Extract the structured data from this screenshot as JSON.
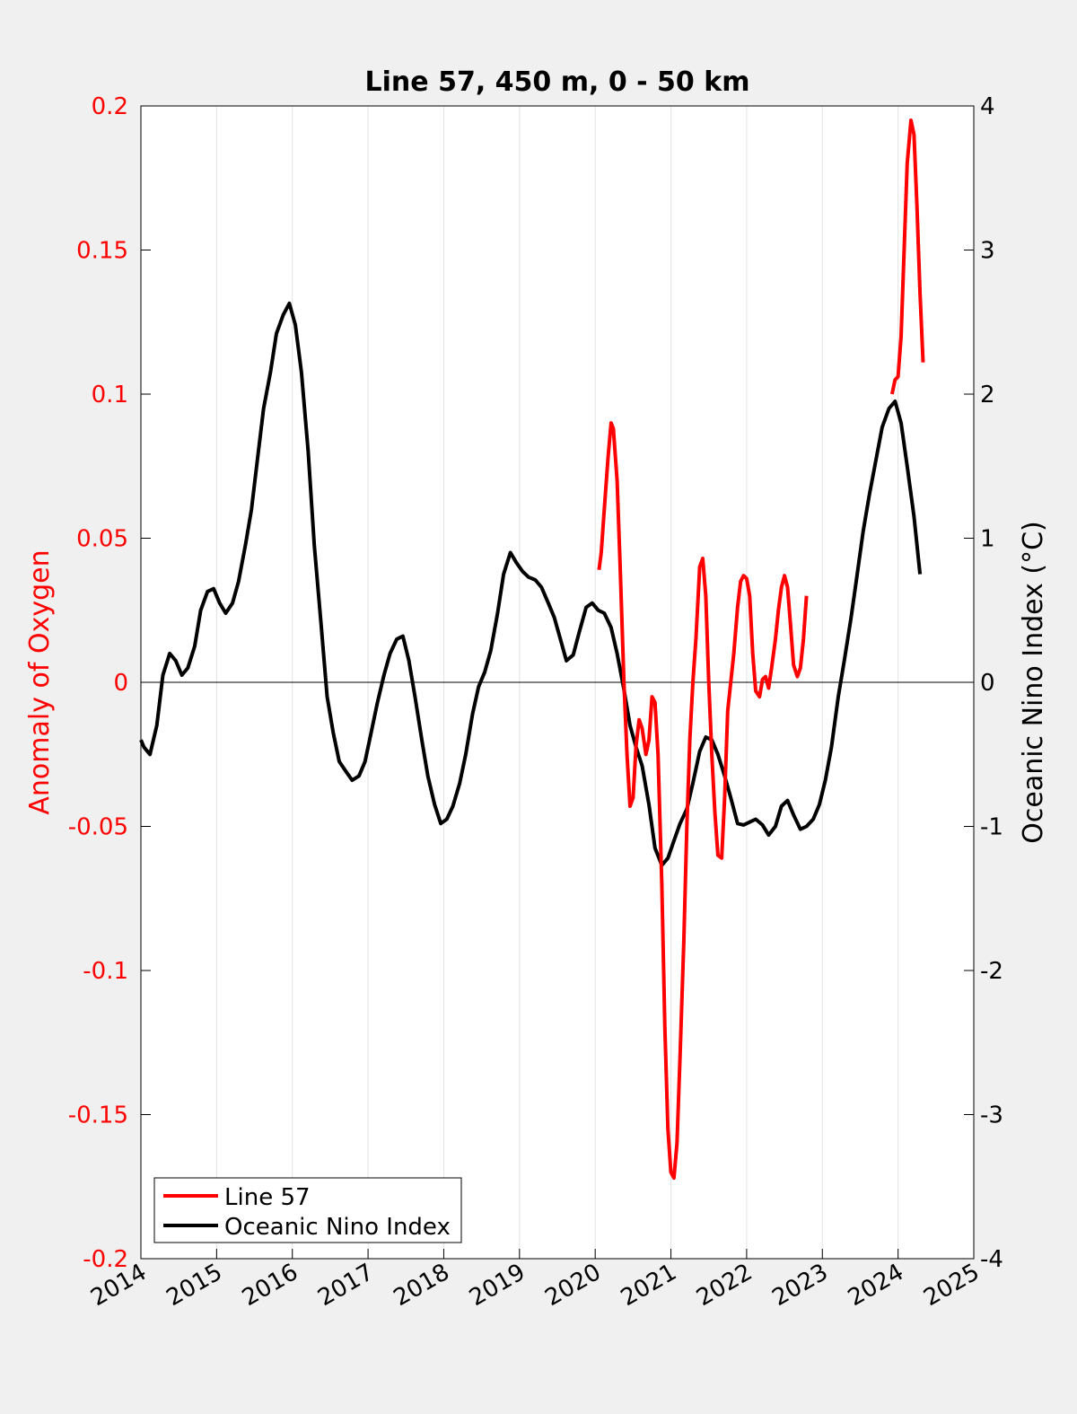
{
  "figure": {
    "background": "#f0f0f0",
    "axes_background": "#ffffff"
  },
  "chart_data": {
    "type": "line",
    "title": "Line 57, 450 m, 0 - 50 km",
    "xlabel": "",
    "ylabel_left": "Anomaly of Oxygen",
    "ylabel_right": "Oceanic Nino Index (°C)",
    "xlim": [
      2014,
      2025
    ],
    "ylim_left": [
      -0.2,
      0.2
    ],
    "ylim_right": [
      -4,
      4
    ],
    "x_ticks": [
      2014,
      2015,
      2016,
      2017,
      2018,
      2019,
      2020,
      2021,
      2022,
      2023,
      2024,
      2025
    ],
    "x_tick_labels": [
      "2014",
      "2015",
      "2016",
      "2017",
      "2018",
      "2019",
      "2020",
      "2021",
      "2022",
      "2023",
      "2024",
      "2025"
    ],
    "y_ticks_left": [
      -0.2,
      -0.15,
      -0.1,
      -0.05,
      0,
      0.05,
      0.1,
      0.15,
      0.2
    ],
    "y_tick_labels_left": [
      "-0.2",
      "-0.15",
      "-0.1",
      "-0.05",
      "0",
      "0.05",
      "0.1",
      "0.15",
      "0.2"
    ],
    "y_ticks_right": [
      -4,
      -3,
      -2,
      -1,
      0,
      1,
      2,
      3,
      4
    ],
    "y_tick_labels_right": [
      "-4",
      "-3",
      "-2",
      "-1",
      "0",
      "1",
      "2",
      "3",
      "4"
    ],
    "x_grid": true,
    "y_grid": false,
    "zero_line": true,
    "legend_position": "bottom-left",
    "left_axis_color": "#ff0000",
    "right_axis_color": "#000000",
    "series": [
      {
        "name": "Line 57",
        "axis": "left",
        "color": "#ff0000",
        "points": [
          [
            2020.05,
            0.039
          ],
          [
            2020.08,
            0.045
          ],
          [
            2020.12,
            0.06
          ],
          [
            2020.17,
            0.078
          ],
          [
            2020.21,
            0.09
          ],
          [
            2020.24,
            0.088
          ],
          [
            2020.29,
            0.07
          ],
          [
            2020.33,
            0.04
          ],
          [
            2020.38,
            0.0
          ],
          [
            2020.42,
            -0.025
          ],
          [
            2020.46,
            -0.043
          ],
          [
            2020.5,
            -0.04
          ],
          [
            2020.54,
            -0.022
          ],
          [
            2020.58,
            -0.013
          ],
          [
            2020.62,
            -0.016
          ],
          [
            2020.67,
            -0.025
          ],
          [
            2020.71,
            -0.02
          ],
          [
            2020.75,
            -0.005
          ],
          [
            2020.79,
            -0.007
          ],
          [
            2020.83,
            -0.025
          ],
          [
            2020.88,
            -0.07
          ],
          [
            2020.92,
            -0.12
          ],
          [
            2020.96,
            -0.155
          ],
          [
            2021.0,
            -0.17
          ],
          [
            2021.04,
            -0.172
          ],
          [
            2021.08,
            -0.16
          ],
          [
            2021.12,
            -0.13
          ],
          [
            2021.17,
            -0.09
          ],
          [
            2021.21,
            -0.05
          ],
          [
            2021.25,
            -0.02
          ],
          [
            2021.29,
            0.0
          ],
          [
            2021.33,
            0.015
          ],
          [
            2021.38,
            0.04
          ],
          [
            2021.42,
            0.043
          ],
          [
            2021.46,
            0.03
          ],
          [
            2021.5,
            0.0
          ],
          [
            2021.54,
            -0.025
          ],
          [
            2021.58,
            -0.045
          ],
          [
            2021.62,
            -0.06
          ],
          [
            2021.67,
            -0.061
          ],
          [
            2021.71,
            -0.04
          ],
          [
            2021.75,
            -0.01
          ],
          [
            2021.79,
            0.0
          ],
          [
            2021.83,
            0.01
          ],
          [
            2021.88,
            0.026
          ],
          [
            2021.92,
            0.035
          ],
          [
            2021.96,
            0.037
          ],
          [
            2022.0,
            0.036
          ],
          [
            2022.04,
            0.03
          ],
          [
            2022.08,
            0.01
          ],
          [
            2022.12,
            -0.003
          ],
          [
            2022.17,
            -0.005
          ],
          [
            2022.21,
            0.001
          ],
          [
            2022.25,
            0.002
          ],
          [
            2022.29,
            -0.002
          ],
          [
            2022.33,
            0.005
          ],
          [
            2022.38,
            0.015
          ],
          [
            2022.42,
            0.025
          ],
          [
            2022.46,
            0.033
          ],
          [
            2022.5,
            0.037
          ],
          [
            2022.54,
            0.033
          ],
          [
            2022.58,
            0.02
          ],
          [
            2022.62,
            0.006
          ],
          [
            2022.67,
            0.002
          ],
          [
            2022.71,
            0.005
          ],
          [
            2022.75,
            0.015
          ],
          [
            2022.79,
            0.03
          ]
        ],
        "points_2": [
          [
            2023.92,
            0.1
          ],
          [
            2023.96,
            0.105
          ],
          [
            2024.0,
            0.106
          ],
          [
            2024.04,
            0.12
          ],
          [
            2024.08,
            0.15
          ],
          [
            2024.12,
            0.18
          ],
          [
            2024.17,
            0.195
          ],
          [
            2024.21,
            0.19
          ],
          [
            2024.25,
            0.165
          ],
          [
            2024.29,
            0.135
          ],
          [
            2024.33,
            0.111
          ]
        ]
      },
      {
        "name": "Oceanic Nino Index",
        "axis": "right",
        "color": "#000000",
        "points": [
          [
            2014.0,
            -0.4
          ],
          [
            2014.04,
            -0.45
          ],
          [
            2014.12,
            -0.5
          ],
          [
            2014.21,
            -0.3
          ],
          [
            2014.29,
            0.05
          ],
          [
            2014.38,
            0.2
          ],
          [
            2014.46,
            0.15
          ],
          [
            2014.54,
            0.05
          ],
          [
            2014.62,
            0.1
          ],
          [
            2014.71,
            0.25
          ],
          [
            2014.79,
            0.5
          ],
          [
            2014.88,
            0.63
          ],
          [
            2014.96,
            0.65
          ],
          [
            2015.04,
            0.55
          ],
          [
            2015.12,
            0.48
          ],
          [
            2015.21,
            0.55
          ],
          [
            2015.29,
            0.7
          ],
          [
            2015.38,
            0.95
          ],
          [
            2015.46,
            1.2
          ],
          [
            2015.54,
            1.55
          ],
          [
            2015.62,
            1.9
          ],
          [
            2015.71,
            2.15
          ],
          [
            2015.79,
            2.42
          ],
          [
            2015.88,
            2.55
          ],
          [
            2015.96,
            2.63
          ],
          [
            2016.04,
            2.48
          ],
          [
            2016.12,
            2.15
          ],
          [
            2016.21,
            1.6
          ],
          [
            2016.29,
            0.95
          ],
          [
            2016.38,
            0.4
          ],
          [
            2016.46,
            -0.1
          ],
          [
            2016.54,
            -0.35
          ],
          [
            2016.62,
            -0.55
          ],
          [
            2016.71,
            -0.62
          ],
          [
            2016.79,
            -0.68
          ],
          [
            2016.88,
            -0.65
          ],
          [
            2016.96,
            -0.55
          ],
          [
            2017.04,
            -0.35
          ],
          [
            2017.12,
            -0.15
          ],
          [
            2017.21,
            0.05
          ],
          [
            2017.29,
            0.2
          ],
          [
            2017.38,
            0.3
          ],
          [
            2017.46,
            0.32
          ],
          [
            2017.54,
            0.15
          ],
          [
            2017.62,
            -0.1
          ],
          [
            2017.71,
            -0.4
          ],
          [
            2017.79,
            -0.65
          ],
          [
            2017.88,
            -0.85
          ],
          [
            2017.96,
            -0.98
          ],
          [
            2018.04,
            -0.95
          ],
          [
            2018.12,
            -0.86
          ],
          [
            2018.21,
            -0.7
          ],
          [
            2018.29,
            -0.5
          ],
          [
            2018.38,
            -0.22
          ],
          [
            2018.46,
            -0.03
          ],
          [
            2018.54,
            0.07
          ],
          [
            2018.62,
            0.22
          ],
          [
            2018.71,
            0.48
          ],
          [
            2018.79,
            0.75
          ],
          [
            2018.88,
            0.9
          ],
          [
            2018.96,
            0.83
          ],
          [
            2019.04,
            0.77
          ],
          [
            2019.12,
            0.73
          ],
          [
            2019.21,
            0.71
          ],
          [
            2019.29,
            0.66
          ],
          [
            2019.38,
            0.55
          ],
          [
            2019.46,
            0.45
          ],
          [
            2019.54,
            0.3
          ],
          [
            2019.62,
            0.15
          ],
          [
            2019.71,
            0.19
          ],
          [
            2019.79,
            0.35
          ],
          [
            2019.88,
            0.52
          ],
          [
            2019.96,
            0.55
          ],
          [
            2020.04,
            0.5
          ],
          [
            2020.12,
            0.48
          ],
          [
            2020.21,
            0.38
          ],
          [
            2020.29,
            0.2
          ],
          [
            2020.38,
            -0.05
          ],
          [
            2020.46,
            -0.3
          ],
          [
            2020.54,
            -0.45
          ],
          [
            2020.62,
            -0.58
          ],
          [
            2020.71,
            -0.85
          ],
          [
            2020.79,
            -1.15
          ],
          [
            2020.88,
            -1.27
          ],
          [
            2020.96,
            -1.22
          ],
          [
            2021.04,
            -1.1
          ],
          [
            2021.12,
            -0.98
          ],
          [
            2021.21,
            -0.88
          ],
          [
            2021.29,
            -0.7
          ],
          [
            2021.38,
            -0.48
          ],
          [
            2021.46,
            -0.38
          ],
          [
            2021.54,
            -0.4
          ],
          [
            2021.62,
            -0.5
          ],
          [
            2021.71,
            -0.65
          ],
          [
            2021.79,
            -0.8
          ],
          [
            2021.88,
            -0.98
          ],
          [
            2021.96,
            -0.99
          ],
          [
            2022.04,
            -0.97
          ],
          [
            2022.12,
            -0.95
          ],
          [
            2022.21,
            -0.99
          ],
          [
            2022.29,
            -1.06
          ],
          [
            2022.38,
            -1.0
          ],
          [
            2022.46,
            -0.86
          ],
          [
            2022.54,
            -0.82
          ],
          [
            2022.62,
            -0.92
          ],
          [
            2022.71,
            -1.02
          ],
          [
            2022.79,
            -1.0
          ],
          [
            2022.88,
            -0.95
          ],
          [
            2022.96,
            -0.85
          ],
          [
            2023.04,
            -0.68
          ],
          [
            2023.12,
            -0.45
          ],
          [
            2023.21,
            -0.1
          ],
          [
            2023.29,
            0.15
          ],
          [
            2023.38,
            0.45
          ],
          [
            2023.46,
            0.75
          ],
          [
            2023.54,
            1.05
          ],
          [
            2023.62,
            1.3
          ],
          [
            2023.71,
            1.55
          ],
          [
            2023.79,
            1.77
          ],
          [
            2023.88,
            1.9
          ],
          [
            2023.96,
            1.95
          ],
          [
            2024.04,
            1.8
          ],
          [
            2024.12,
            1.5
          ],
          [
            2024.21,
            1.15
          ],
          [
            2024.29,
            0.75
          ]
        ]
      }
    ]
  }
}
